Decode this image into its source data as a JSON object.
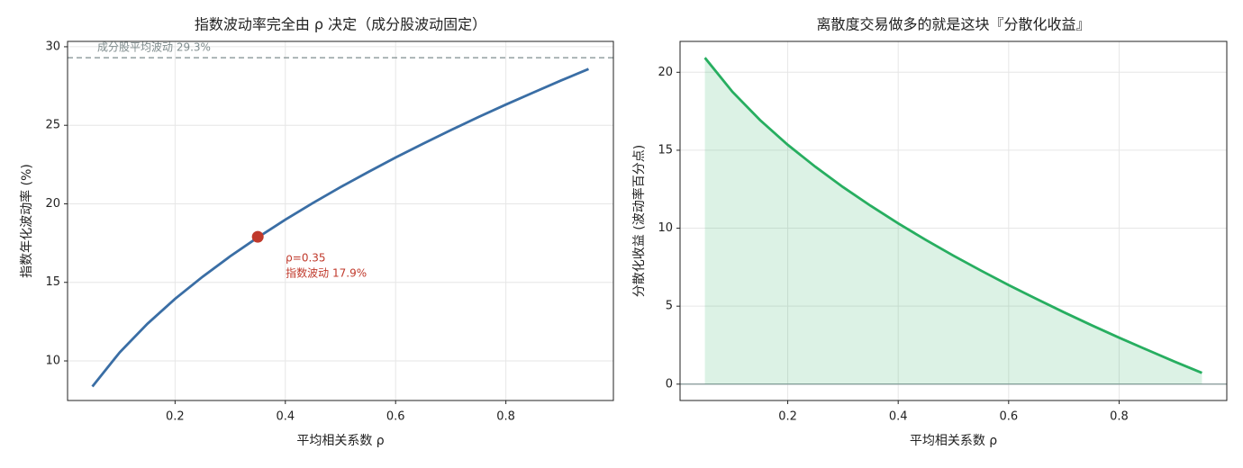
{
  "chart_data": [
    {
      "type": "line",
      "title": "指数波动率完全由 ρ 决定（成分股波动固定）",
      "x_label": "平均相关系数 ρ",
      "y_label": "指数年化波动率 (%)",
      "x": [
        0.05,
        0.1,
        0.15,
        0.2,
        0.25,
        0.3,
        0.35,
        0.4,
        0.45,
        0.5,
        0.55,
        0.6,
        0.65,
        0.7,
        0.75,
        0.8,
        0.85,
        0.9,
        0.95
      ],
      "series": [
        {
          "color": "#3a6ea5",
          "values": [
            8.37,
            10.56,
            12.37,
            13.95,
            15.36,
            16.66,
            17.86,
            18.99,
            20.05,
            21.06,
            22.02,
            22.95,
            23.83,
            24.69,
            25.52,
            26.32,
            27.09,
            27.85,
            28.58
          ]
        }
      ],
      "xlim": [
        0.005,
        0.995
      ],
      "ylim": [
        7.48,
        30.34
      ],
      "xticks": [
        0.2,
        0.4,
        0.6,
        0.8
      ],
      "yticks": [
        10,
        15,
        20,
        25,
        30
      ],
      "grid": true,
      "reference_line": {
        "value": 29.3,
        "label": "成分股平均波动 29.3%",
        "color": "#7f8c8d"
      },
      "highlight": {
        "x": 0.35,
        "y": 17.9,
        "color": "#c0392b",
        "labels": [
          "ρ=0.35",
          "指数波动 17.9%"
        ]
      }
    },
    {
      "type": "line",
      "title": "离散度交易做多的就是这块『分散化收益』",
      "x_label": "平均相关系数 ρ",
      "y_label": "分散化收益 (波动率百分点)",
      "x": [
        0.05,
        0.1,
        0.15,
        0.2,
        0.25,
        0.3,
        0.35,
        0.4,
        0.45,
        0.5,
        0.55,
        0.6,
        0.65,
        0.7,
        0.75,
        0.8,
        0.85,
        0.9,
        0.95
      ],
      "series": [
        {
          "color": "#27ae60",
          "values": [
            20.93,
            18.74,
            16.93,
            15.35,
            13.94,
            12.64,
            11.44,
            10.31,
            9.25,
            8.24,
            7.28,
            6.35,
            5.47,
            4.61,
            3.78,
            2.98,
            2.21,
            1.45,
            0.72
          ]
        }
      ],
      "xlim": [
        0.005,
        0.995
      ],
      "ylim": [
        -1.05,
        21.98
      ],
      "xticks": [
        0.2,
        0.4,
        0.6,
        0.8
      ],
      "yticks": [
        0,
        5,
        10,
        15,
        20
      ],
      "grid": true,
      "fill": true,
      "zero_line": true
    }
  ]
}
